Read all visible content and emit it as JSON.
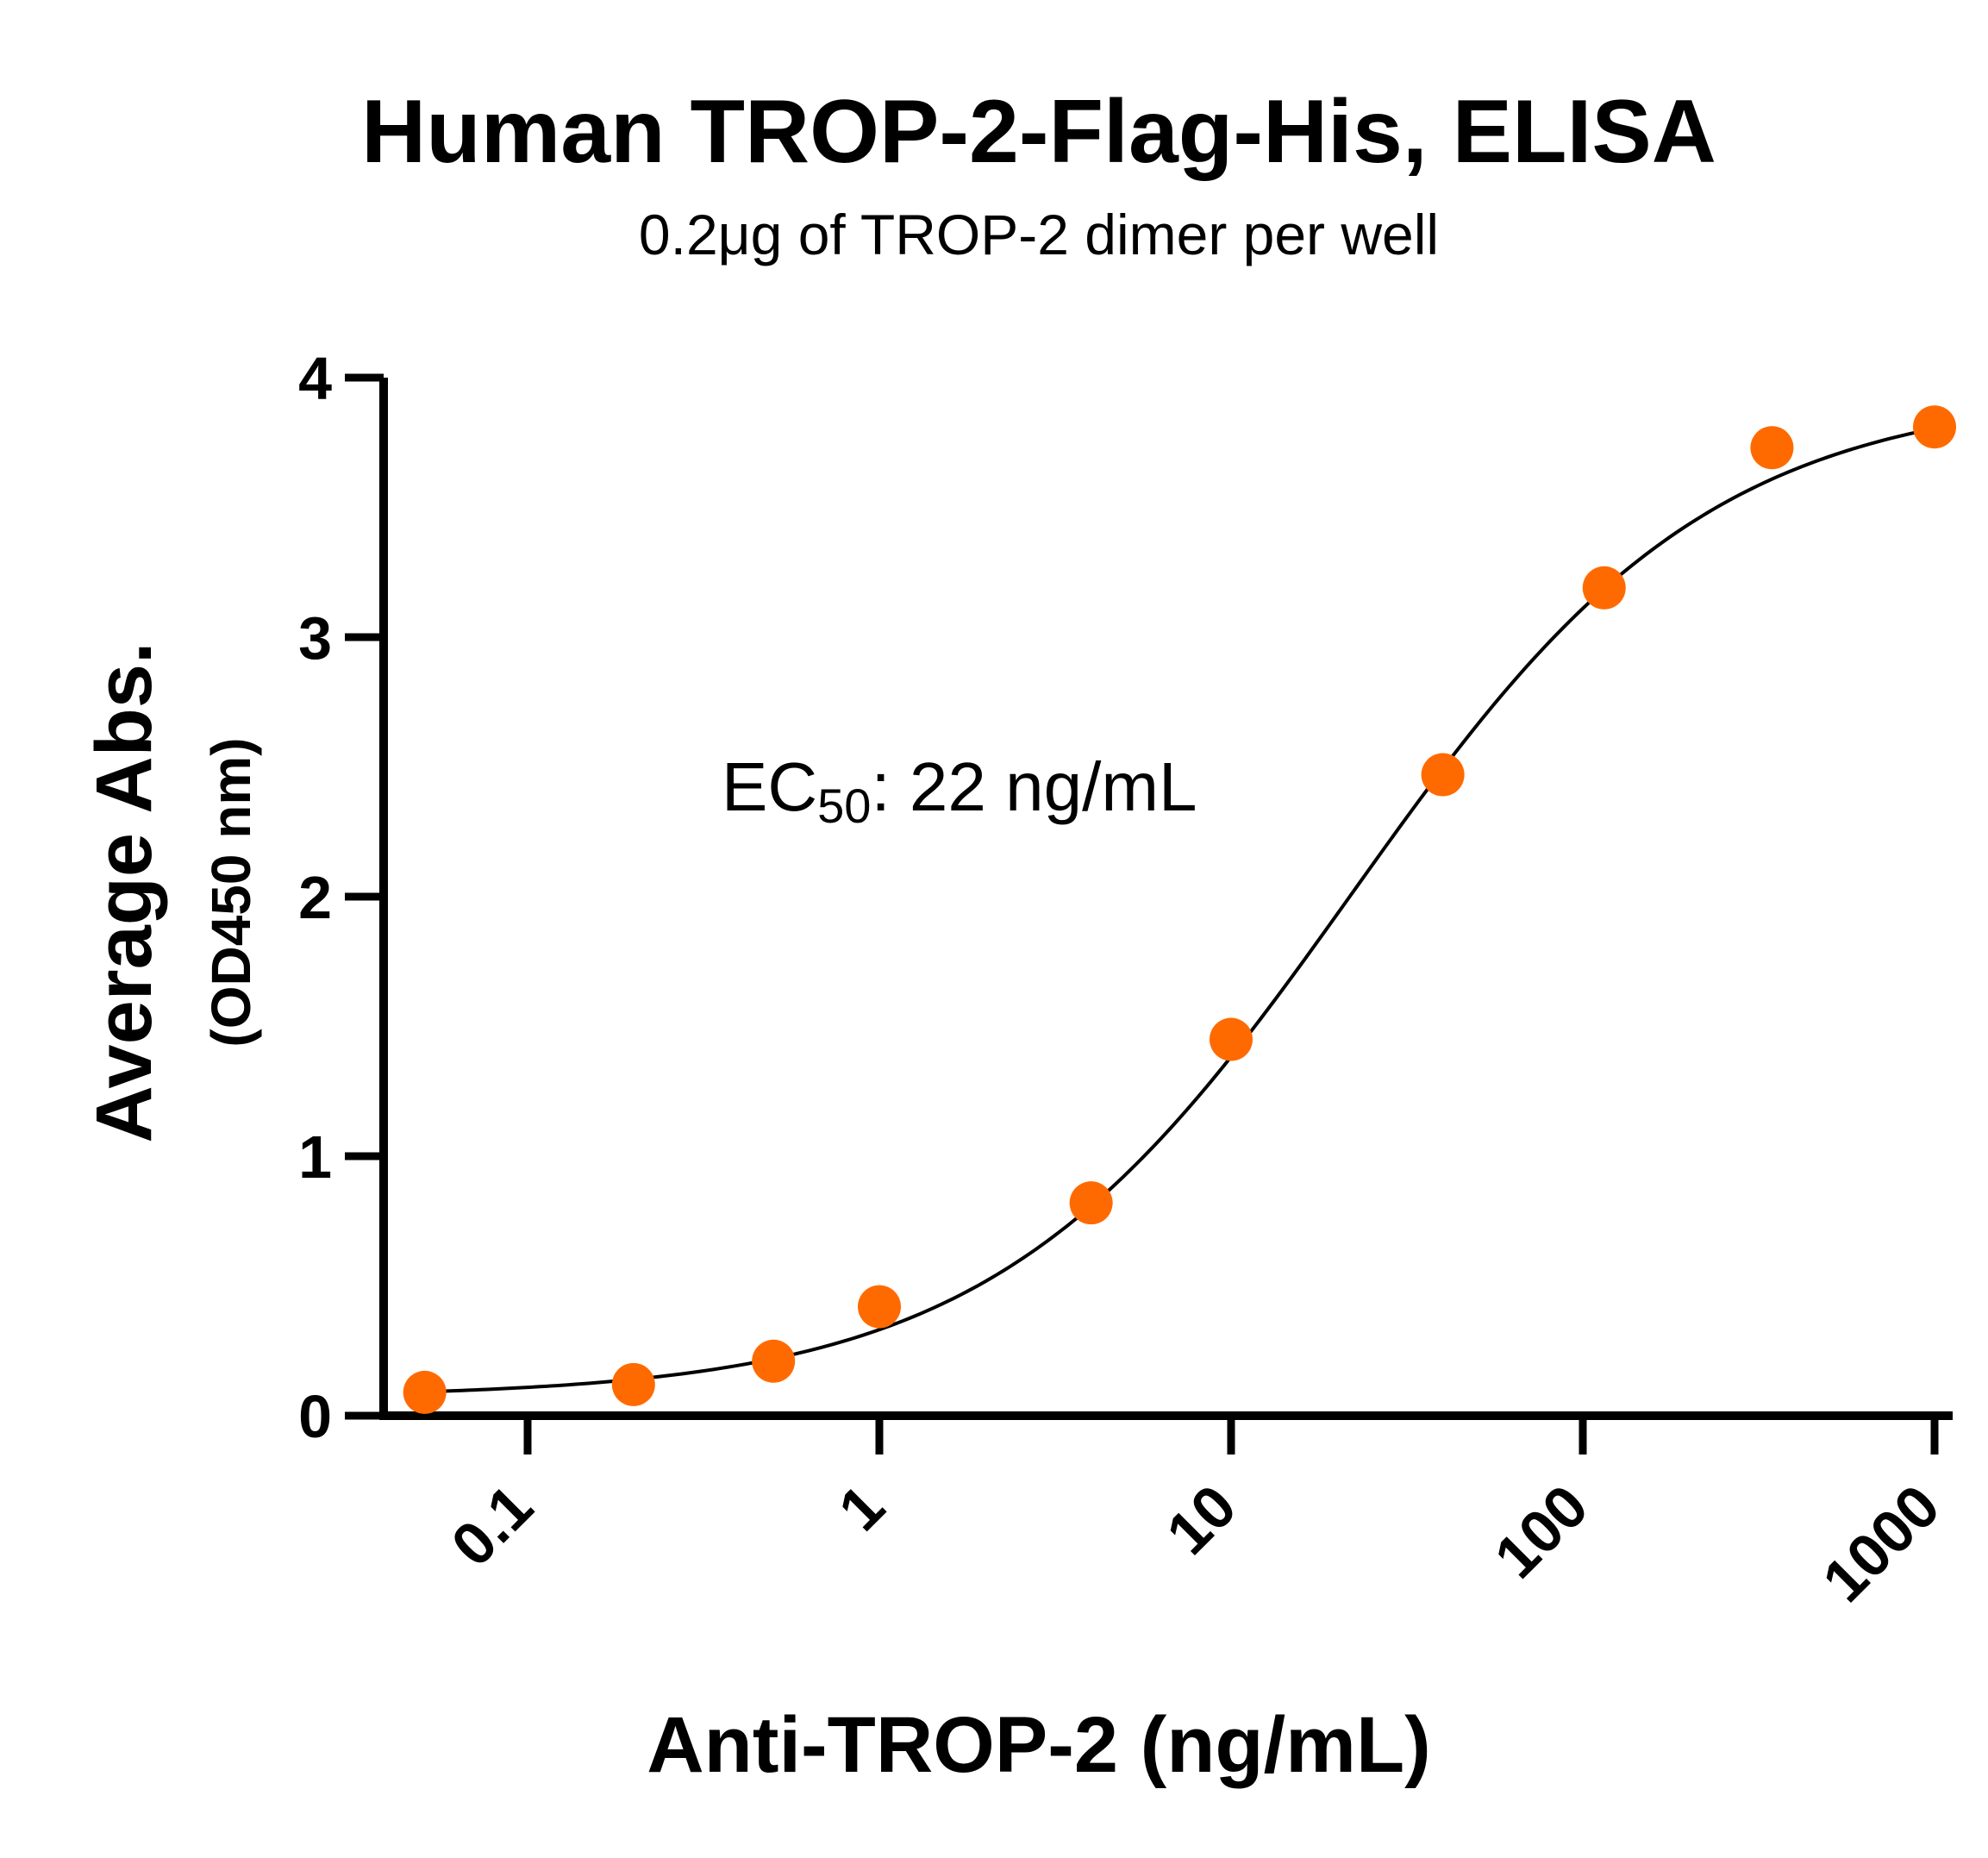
{
  "chart_data": {
    "type": "scatter",
    "title": "Human TROP-2-Flag-His, ELISA",
    "subtitle": "0.2μg of TROP-2 dimer per well",
    "xlabel": "Anti-TROP-2 (ng/mL)",
    "ylabel": "Average Abs.",
    "ylabel_sub": "(OD450 nm)",
    "x_scale": "log",
    "xlim": [
      0.05,
      1000
    ],
    "ylim": [
      0,
      4
    ],
    "x_ticks": [
      0.1,
      1,
      10,
      100,
      1000
    ],
    "x_tick_labels": [
      "0.1",
      "1",
      "10",
      "100",
      "1000"
    ],
    "y_ticks": [
      0,
      1,
      2,
      3,
      4
    ],
    "y_tick_labels": [
      "0",
      "1",
      "2",
      "3",
      "4"
    ],
    "grid": false,
    "annotation": {
      "prefix": "EC",
      "subscript": "50",
      "suffix": ": 22 ng/mL"
    },
    "series": [
      {
        "x": [
          0.051,
          0.2,
          0.5,
          1.0,
          4.0,
          10.0,
          40.0,
          115.0,
          345.0,
          1000.0
        ],
        "y": [
          0.09,
          0.12,
          0.21,
          0.42,
          0.82,
          1.45,
          2.47,
          3.19,
          3.73,
          3.81
        ],
        "color": "#FF6A00"
      }
    ],
    "fit_curve": {
      "model": "4PL",
      "bottom": 0.07,
      "top": 3.95,
      "ec50": 22,
      "hill": 0.85,
      "color": "#000000"
    }
  }
}
